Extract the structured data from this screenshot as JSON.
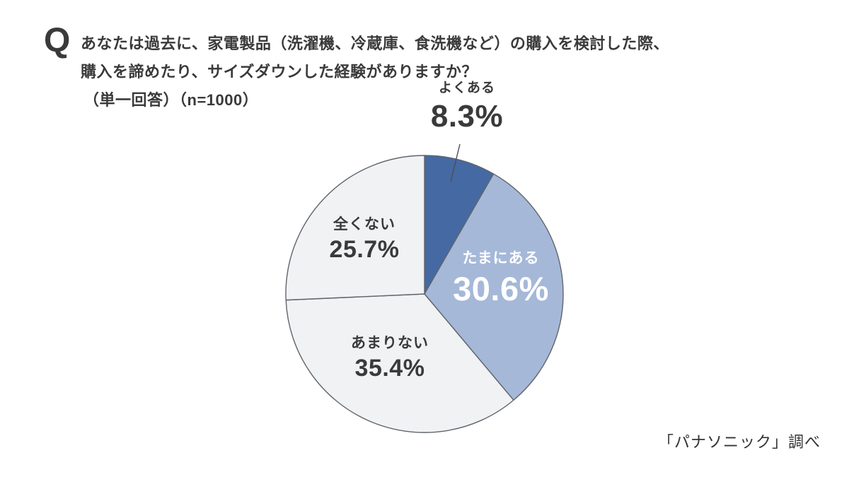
{
  "question": {
    "q_mark": "Q",
    "line1": "あなたは過去に、家電製品（洗濯機、冷蔵庫、食洗機など）の購入を検討した際、",
    "line2": "購入を諦めたり、サイズダウンした経験がありますか？",
    "line3": "（単一回答）（n=1000）"
  },
  "source": "「パナソニック」調べ",
  "chart_data": {
    "type": "pie",
    "title": "あなたは過去に、家電製品（洗濯機、冷蔵庫、食洗機など）の購入を検討した際、購入を諦めたり、サイズダウンした経験がありますか？",
    "response_type": "単一回答",
    "sample_size": 1000,
    "start_angle_deg": 0,
    "direction": "clockwise",
    "legend": "none",
    "stroke_color": "#60656c",
    "segments": [
      {
        "label": "よくある",
        "value": 8.3,
        "value_label": "8.3%",
        "color": "#4569a2",
        "text_color": "#3a3a3a",
        "label_placement": "outside-top"
      },
      {
        "label": "たまにある",
        "value": 30.6,
        "value_label": "30.6%",
        "color": "#a5b8d8",
        "text_color": "#ffffff",
        "label_placement": "inside"
      },
      {
        "label": "あまりない",
        "value": 35.4,
        "value_label": "35.4%",
        "color": "#f1f2f4",
        "text_color": "#3a3a3a",
        "label_placement": "inside"
      },
      {
        "label": "全くない",
        "value": 25.7,
        "value_label": "25.7%",
        "color": "#f1f2f4",
        "text_color": "#3a3a3a",
        "label_placement": "inside"
      }
    ]
  }
}
